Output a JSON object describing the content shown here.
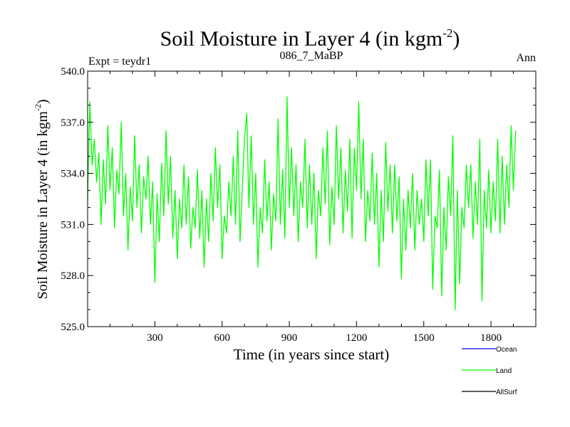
{
  "chart_data": {
    "type": "line",
    "title_main": "Soil Moisture in Layer 4 (in kgm",
    "title_sup": "-2",
    "title_close": ")",
    "subtitle_left": "Expt = teydr1",
    "subtitle_center": "086_7_MaBP",
    "subtitle_right": "Ann",
    "xlabel": "Time (in years since start)",
    "ylabel_main": "Soil Moisture in Layer 4 (in kgm",
    "ylabel_sup": "-2",
    "ylabel_close": ")",
    "xlim": [
      0,
      2000
    ],
    "ylim": [
      525.0,
      540.0
    ],
    "xticks": [
      {
        "value": 300,
        "label": "300"
      },
      {
        "value": 600,
        "label": "600"
      },
      {
        "value": 900,
        "label": "900"
      },
      {
        "value": 1200,
        "label": "1200"
      },
      {
        "value": 1500,
        "label": "1500"
      },
      {
        "value": 1800,
        "label": "1800"
      }
    ],
    "x_minor_step": 100,
    "yticks": [
      {
        "value": 525.0,
        "label": "525.0"
      },
      {
        "value": 528.0,
        "label": "528.0"
      },
      {
        "value": 531.0,
        "label": "531.0"
      },
      {
        "value": 534.0,
        "label": "534.0"
      },
      {
        "value": 537.0,
        "label": "537.0"
      },
      {
        "value": 540.0,
        "label": "540.0"
      }
    ],
    "y_minor_step": 1.0,
    "legend": [
      {
        "name": "Ocean",
        "color": "#0000ff"
      },
      {
        "name": "Land",
        "color": "#00ff00"
      },
      {
        "name": "AllSurf",
        "color": "#000000"
      }
    ],
    "series": [
      {
        "name": "Land",
        "color": "#00ff00",
        "x_start": 0,
        "x_step": 10,
        "values": [
          532.5,
          538.2,
          534.5,
          536.0,
          533.5,
          535.2,
          531.0,
          534.8,
          532.2,
          536.8,
          533.0,
          535.5,
          530.8,
          534.2,
          532.8,
          537.0,
          531.5,
          534.0,
          529.5,
          533.2,
          531.2,
          536.2,
          532.0,
          534.5,
          530.5,
          533.8,
          532.5,
          535.0,
          531.0,
          533.5,
          527.6,
          532.8,
          530.0,
          534.6,
          531.5,
          536.5,
          532.2,
          535.0,
          530.2,
          533.0,
          529.0,
          532.5,
          530.8,
          534.5,
          531.0,
          533.8,
          529.6,
          532.0,
          530.8,
          534.2,
          530.2,
          533.0,
          528.5,
          532.5,
          530.0,
          534.0,
          531.2,
          535.5,
          532.0,
          534.5,
          529.0,
          531.5,
          530.5,
          533.5,
          531.5,
          535.0,
          531.0,
          536.5,
          530.0,
          533.0,
          536.0,
          537.5,
          532.0,
          536.2,
          531.0,
          534.0,
          528.5,
          532.0,
          530.5,
          534.8,
          531.2,
          533.5,
          529.5,
          532.8,
          531.2,
          537.2,
          531.0,
          534.2,
          530.2,
          538.5,
          532.0,
          535.5,
          531.5,
          534.5,
          530.0,
          533.5,
          532.0,
          536.0,
          530.8,
          534.5,
          531.0,
          534.0,
          529.0,
          533.0,
          531.5,
          535.5,
          532.2,
          536.5,
          529.8,
          533.2,
          531.0,
          536.8,
          532.5,
          535.5,
          530.5,
          534.2,
          531.8,
          536.0,
          530.2,
          535.5,
          533.0,
          538.2,
          532.5,
          536.0,
          530.0,
          533.0,
          531.2,
          535.2,
          531.0,
          534.0,
          528.5,
          533.0,
          530.0,
          535.8,
          531.8,
          534.5,
          530.5,
          534.5,
          531.2,
          533.8,
          527.8,
          532.5,
          529.5,
          533.0,
          530.8,
          534.0,
          529.5,
          533.0,
          531.0,
          532.5,
          530.0,
          534.8,
          531.5,
          534.8,
          527.2,
          531.5,
          530.8,
          534.2,
          526.8,
          532.0,
          529.5,
          533.8,
          531.5,
          536.2,
          526.0,
          533.0,
          527.5,
          532.0,
          530.8,
          534.5,
          532.0,
          534.5,
          530.2,
          533.5,
          531.0,
          536.0,
          526.5,
          533.0,
          530.8,
          534.2,
          530.5,
          533.5,
          531.2,
          536.0,
          530.5,
          535.0,
          531.0,
          534.5,
          532.0,
          536.8,
          533.0,
          536.5
        ]
      }
    ],
    "grid": false
  }
}
